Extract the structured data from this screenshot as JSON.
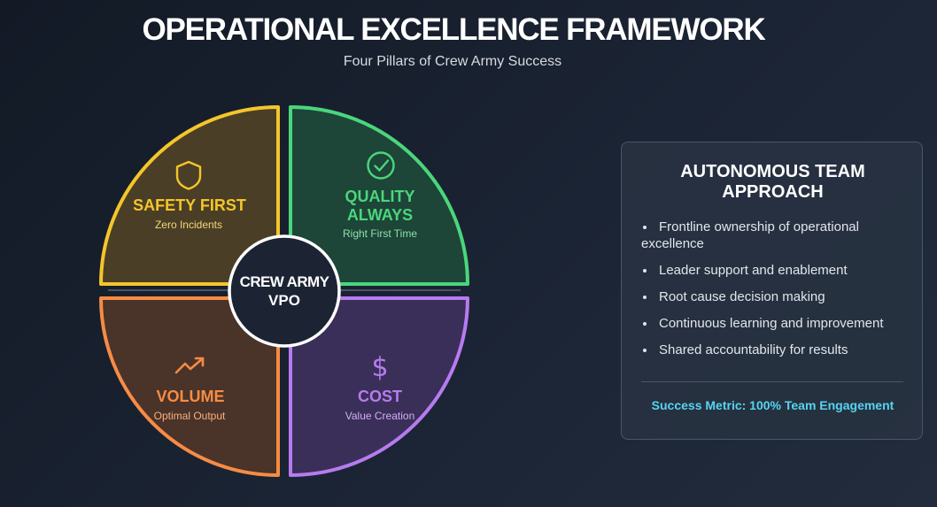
{
  "header": {
    "title": "OPERATIONAL EXCELLENCE FRAMEWORK",
    "subtitle": "Four Pillars of Crew Army Success"
  },
  "diagram": {
    "center": {
      "line1": "CREW ARMY",
      "line2": "VPO"
    },
    "pillars": [
      {
        "key": "safety",
        "icon": "shield-icon",
        "title_lines": [
          "SAFETY FIRST"
        ],
        "subtitle": "Zero Incidents",
        "color": "#f5c52b",
        "fill": "#4a3f26",
        "subtitle_color": "#f5d77a"
      },
      {
        "key": "quality",
        "icon": "check-circle-icon",
        "title_lines": [
          "QUALITY",
          "ALWAYS"
        ],
        "subtitle": "Right First Time",
        "color": "#4ad67c",
        "fill": "#1d4538",
        "subtitle_color": "#8ce0a8"
      },
      {
        "key": "volume",
        "icon": "trend-up-icon",
        "title_lines": [
          "VOLUME"
        ],
        "subtitle": "Optimal Output",
        "color": "#f68c44",
        "fill": "#4a3329",
        "subtitle_color": "#f8b27e"
      },
      {
        "key": "cost",
        "icon": "dollar-icon",
        "title_lines": [
          "COST"
        ],
        "subtitle": "Value Creation",
        "color": "#b77bf0",
        "fill": "#3a2f58",
        "subtitle_color": "#d2b0f5"
      }
    ]
  },
  "panel": {
    "title_line1": "AUTONOMOUS TEAM",
    "title_line2": "APPROACH",
    "bullets": [
      "Frontline ownership of operational excellence",
      "Leader support and enablement",
      "Root cause decision making",
      "Continuous learning and improvement",
      "Shared accountability for results"
    ],
    "metric": "Success Metric: 100% Team Engagement"
  }
}
